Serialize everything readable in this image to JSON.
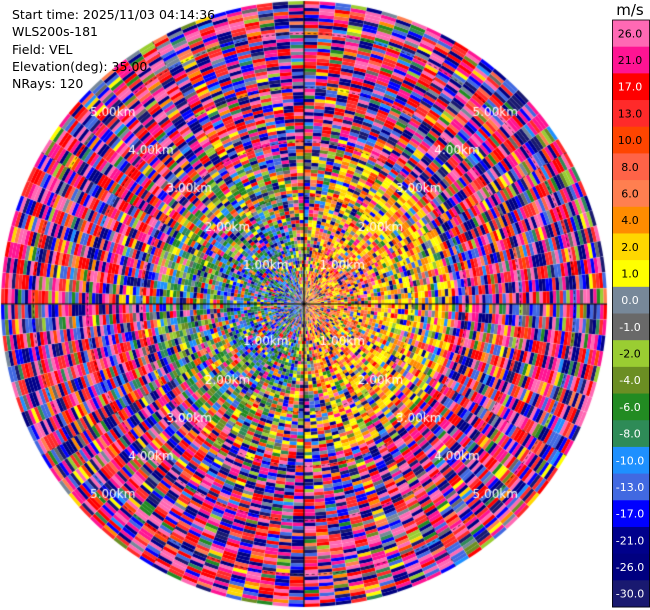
{
  "info": {
    "start_time": "Start time: 2025/11/03 04:14:36",
    "station": "WLS200s-181",
    "field": "Field: VEL",
    "elevation": "Elevation(deg): 35.00",
    "nrays": "NRays: 120"
  },
  "chart_data": {
    "type": "heatmap",
    "projection": "polar",
    "field": "VEL",
    "nrays": 120,
    "range_unit": "km",
    "range_rings_km": [
      1.0,
      2.0,
      3.0,
      4.0,
      5.0
    ],
    "max_range_km": 5.6,
    "ring_label_texts": [
      "1.00km",
      "2.00km",
      "3.00km",
      "4.00km",
      "5.00km"
    ],
    "colorbar": {
      "unit": "m/s",
      "labels": [
        "26.0",
        "21.0",
        "17.0",
        "13.0",
        "10.0",
        "8.0",
        "6.0",
        "4.0",
        "2.0",
        "1.0",
        "0.0",
        "-1.0",
        "-2.0",
        "-4.0",
        "-6.0",
        "-8.0",
        "-10.0",
        "-13.0",
        "-17.0",
        "-21.0",
        "-26.0",
        "-30.0"
      ],
      "colors": [
        "#ff69b4",
        "#ff1493",
        "#ff0000",
        "#ff2a2a",
        "#ff4500",
        "#ff6347",
        "#ff7f50",
        "#ff8c00",
        "#ffd700",
        "#ffff00",
        "#778899",
        "#696969",
        "#9acd32",
        "#6b8e23",
        "#228b22",
        "#2e8b57",
        "#1e90ff",
        "#4169e1",
        "#0000ff",
        "#00008b",
        "#000080",
        "#191970"
      ]
    }
  }
}
